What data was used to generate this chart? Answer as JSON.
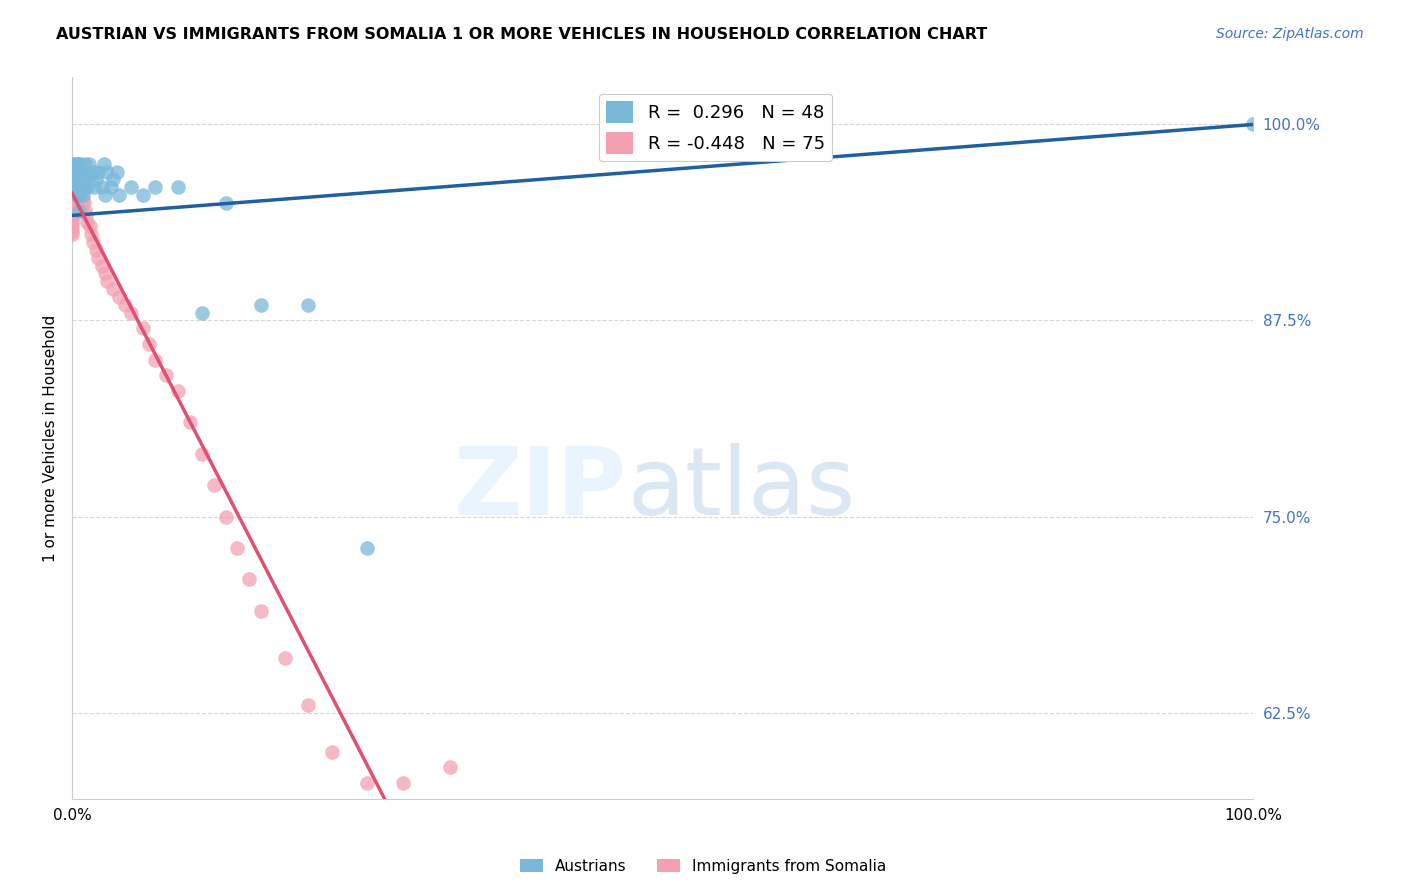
{
  "title": "AUSTRIAN VS IMMIGRANTS FROM SOMALIA 1 OR MORE VEHICLES IN HOUSEHOLD CORRELATION CHART",
  "source": "Source: ZipAtlas.com",
  "ylabel": "1 or more Vehicles in Household",
  "xlim": [
    0.0,
    1.0
  ],
  "ylim": [
    0.57,
    1.03
  ],
  "yticks": [
    0.625,
    0.75,
    0.875,
    1.0
  ],
  "ytick_labels": [
    "62.5%",
    "75.0%",
    "87.5%",
    "100.0%"
  ],
  "xticks": [
    0.0,
    0.2,
    0.4,
    0.6,
    0.8,
    1.0
  ],
  "xtick_labels": [
    "0.0%",
    "",
    "",
    "",
    "",
    "100.0%"
  ],
  "legend_R_austrians": " 0.296",
  "legend_N_austrians": "48",
  "legend_R_somalia": "-0.448",
  "legend_N_somalia": "75",
  "austrians_color": "#7ab8d9",
  "somalia_color": "#f4a0b0",
  "trendline_austrians_color": "#2060a0",
  "trendline_somalia_color": "#e05070",
  "background_color": "#ffffff",
  "austrians_x": [
    0.0,
    0.0,
    0.0,
    0.0,
    0.003,
    0.003,
    0.004,
    0.004,
    0.004,
    0.005,
    0.005,
    0.005,
    0.006,
    0.006,
    0.006,
    0.007,
    0.007,
    0.008,
    0.009,
    0.009,
    0.01,
    0.011,
    0.012,
    0.013,
    0.014,
    0.016,
    0.018,
    0.019,
    0.02,
    0.022,
    0.025,
    0.027,
    0.028,
    0.03,
    0.033,
    0.035,
    0.038,
    0.04,
    0.05,
    0.06,
    0.07,
    0.09,
    0.11,
    0.13,
    0.16,
    0.2,
    0.25,
    1.0
  ],
  "austrians_y": [
    0.97,
    0.975,
    0.968,
    0.96,
    0.965,
    0.97,
    0.975,
    0.96,
    0.955,
    0.97,
    0.975,
    0.965,
    0.96,
    0.955,
    0.945,
    0.975,
    0.96,
    0.97,
    0.965,
    0.955,
    0.96,
    0.975,
    0.97,
    0.96,
    0.975,
    0.968,
    0.97,
    0.96,
    0.965,
    0.97,
    0.96,
    0.975,
    0.955,
    0.97,
    0.96,
    0.965,
    0.97,
    0.955,
    0.96,
    0.955,
    0.96,
    0.96,
    0.88,
    0.95,
    0.885,
    0.885,
    0.73,
    1.0
  ],
  "somalia_x": [
    0.0,
    0.0,
    0.0,
    0.0,
    0.0,
    0.0,
    0.0,
    0.0,
    0.0,
    0.0,
    0.0,
    0.0,
    0.0,
    0.0,
    0.0,
    0.0,
    0.0,
    0.0,
    0.0,
    0.0,
    0.001,
    0.001,
    0.001,
    0.001,
    0.001,
    0.002,
    0.002,
    0.002,
    0.002,
    0.003,
    0.003,
    0.003,
    0.004,
    0.004,
    0.004,
    0.005,
    0.005,
    0.006,
    0.007,
    0.008,
    0.009,
    0.01,
    0.011,
    0.012,
    0.013,
    0.015,
    0.016,
    0.018,
    0.02,
    0.022,
    0.025,
    0.028,
    0.03,
    0.035,
    0.04,
    0.045,
    0.05,
    0.06,
    0.065,
    0.07,
    0.08,
    0.09,
    0.1,
    0.11,
    0.12,
    0.13,
    0.14,
    0.15,
    0.16,
    0.18,
    0.2,
    0.22,
    0.25,
    0.28,
    0.32
  ],
  "somalia_y": [
    0.975,
    0.972,
    0.97,
    0.968,
    0.966,
    0.964,
    0.962,
    0.96,
    0.958,
    0.955,
    0.952,
    0.95,
    0.948,
    0.945,
    0.942,
    0.94,
    0.938,
    0.935,
    0.932,
    0.93,
    0.975,
    0.97,
    0.965,
    0.96,
    0.955,
    0.972,
    0.968,
    0.96,
    0.955,
    0.97,
    0.965,
    0.958,
    0.968,
    0.96,
    0.95,
    0.965,
    0.955,
    0.96,
    0.958,
    0.955,
    0.952,
    0.95,
    0.945,
    0.942,
    0.938,
    0.935,
    0.93,
    0.925,
    0.92,
    0.915,
    0.91,
    0.905,
    0.9,
    0.895,
    0.89,
    0.885,
    0.88,
    0.87,
    0.86,
    0.85,
    0.84,
    0.83,
    0.81,
    0.79,
    0.77,
    0.75,
    0.73,
    0.71,
    0.69,
    0.66,
    0.63,
    0.6,
    0.58,
    0.58,
    0.59
  ],
  "somalia_trendline_x_end": 0.32,
  "somalia_trendline_dash_end": 0.8,
  "austrians_trendline_y_start": 0.942,
  "austrians_trendline_y_end": 1.0
}
